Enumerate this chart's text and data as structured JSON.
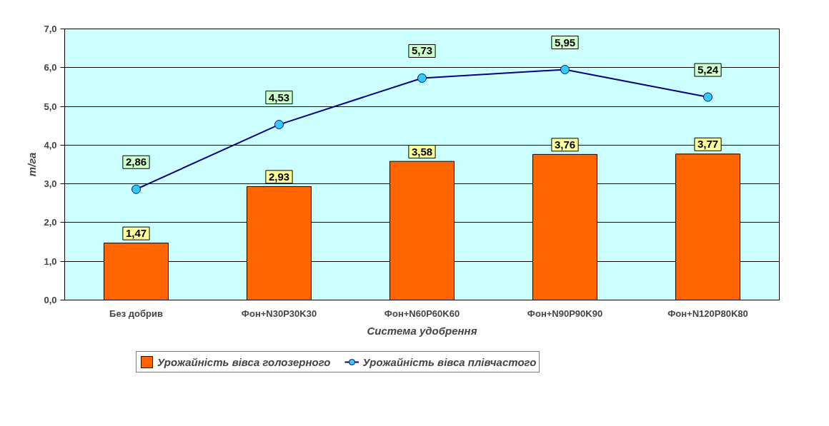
{
  "chart_data": {
    "type": "bar",
    "xlabel": "Система удобрення",
    "ylabel": "т/га",
    "categories": [
      "Без добрив",
      "Фон+N30P30K30",
      "Фон+N60P60K60",
      "Фон+N90P90K90",
      "Фон+N120P80K80"
    ],
    "series": [
      {
        "name": "Урожайність вівса голозерного",
        "color": "#ff6600",
        "values": [
          1.47,
          2.93,
          3.58,
          3.76,
          3.77
        ],
        "value_labels": [
          "1,47",
          "2,93",
          "3,58",
          "3,76",
          "3,77"
        ]
      },
      {
        "name": "Урожайність вівса плівчастого",
        "type": "line",
        "color": "#000080",
        "values": [
          2.86,
          4.53,
          5.73,
          5.95,
          5.24
        ],
        "value_labels": [
          "2,86",
          "4,53",
          "5,73",
          "5,95",
          "5,24"
        ]
      }
    ],
    "ylim": [
      0,
      7
    ],
    "yticks": [
      {
        "value": 0,
        "label": "0,0"
      },
      {
        "value": 1,
        "label": "1,0"
      },
      {
        "value": 2,
        "label": "2,0"
      },
      {
        "value": 3,
        "label": "3,0"
      },
      {
        "value": 4,
        "label": "4,0"
      },
      {
        "value": 5,
        "label": "5,0"
      },
      {
        "value": 6,
        "label": "6,0"
      },
      {
        "value": 7,
        "label": "7,0"
      }
    ],
    "grid": "y",
    "legend": "bottom",
    "marker": "circle",
    "line_style": "solid"
  }
}
